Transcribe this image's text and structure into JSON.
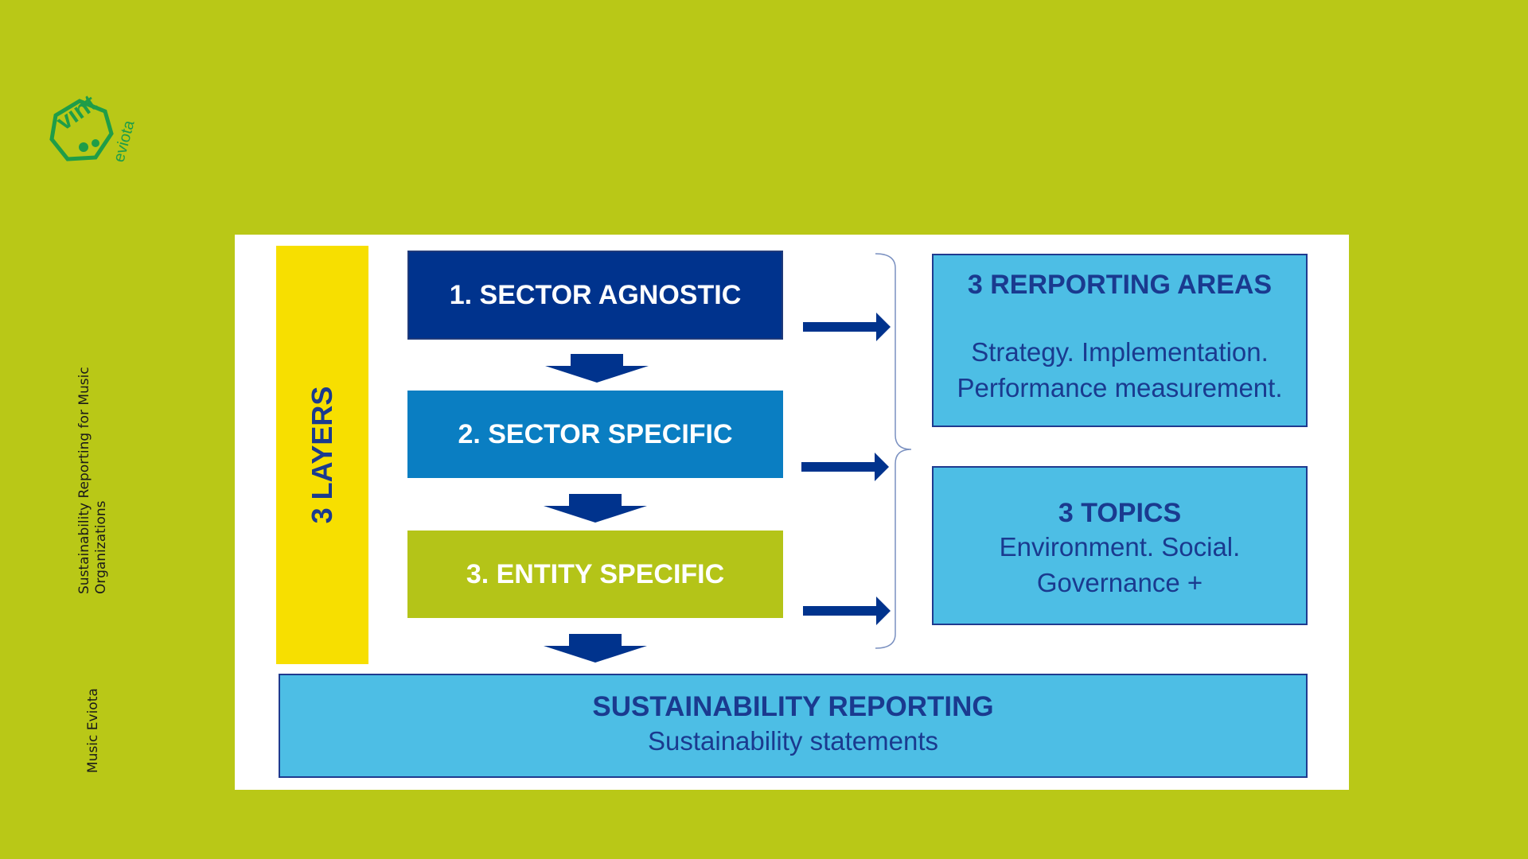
{
  "logo": {
    "text_main": "vint",
    "text_sub": "eviota",
    "icon": "vint-eviota-logo-icon"
  },
  "sidebar": {
    "title": "Sustainability Reporting for Music Organizations",
    "org": "Music Eviota"
  },
  "diagram": {
    "layers_label": "3 LAYERS",
    "layers": [
      {
        "label": "1. SECTOR AGNOSTIC",
        "color": "#00338d"
      },
      {
        "label": "2. SECTOR SPECIFIC",
        "color": "#0a7ec2"
      },
      {
        "label": "3. ENTITY SPECIFIC",
        "color": "#b4c418"
      }
    ],
    "areas": {
      "title": "3 RERPORTING AREAS",
      "text": "Strategy. Implementation. Performance measurement."
    },
    "topics": {
      "title": "3 TOPICS",
      "text": "Environment. Social. Governance +"
    },
    "reporting": {
      "title": "SUSTAINABILITY REPORTING",
      "subtitle": "Sustainability statements"
    },
    "colors": {
      "background": "#b9c817",
      "layers_bar": "#f7df00",
      "box_light": "#4dbee5",
      "text_dark_blue": "#1a3a8f",
      "arrow": "#00338d"
    }
  }
}
